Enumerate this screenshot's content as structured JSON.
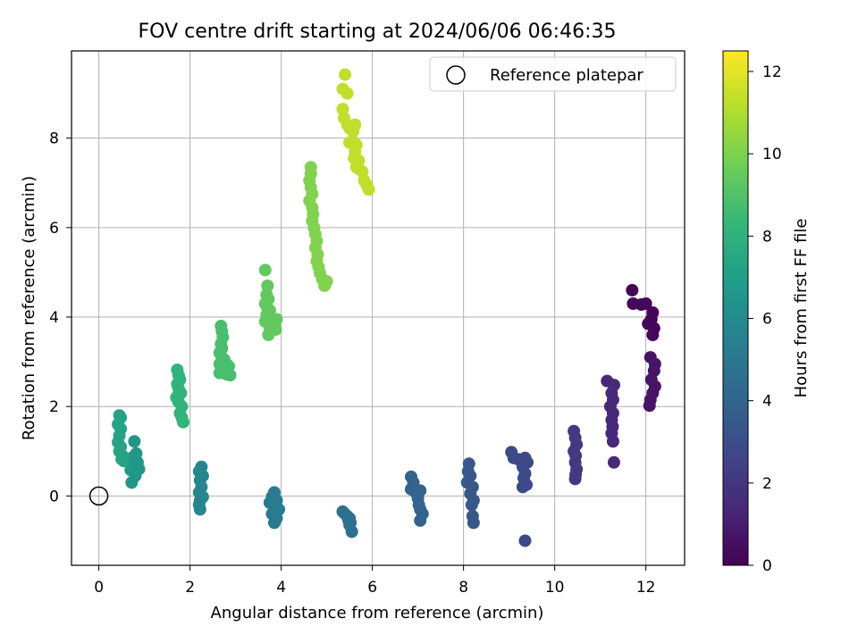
{
  "chart_data": {
    "type": "scatter",
    "title": "FOV centre drift starting at 2024/06/06 06:46:35",
    "xlabel": "Angular distance from reference (arcmin)",
    "ylabel": "Rotation from reference (arcmin)",
    "xlim": [
      -0.6,
      12.85
    ],
    "ylim": [
      -1.55,
      9.95
    ],
    "xticks": [
      0,
      2,
      4,
      6,
      8,
      10,
      12
    ],
    "yticks": [
      0,
      2,
      4,
      6,
      8
    ],
    "grid": true,
    "legend": {
      "position": "top-right",
      "entries": [
        "Reference platepar"
      ]
    },
    "reference_point": {
      "x": 0,
      "y": 0,
      "label": "Reference platepar"
    },
    "colorbar": {
      "label": "Hours from first FF file",
      "range": [
        0,
        12.5
      ],
      "ticks": [
        0,
        2,
        4,
        6,
        8,
        10,
        12
      ],
      "colormap": "viridis",
      "stops": [
        "#440154",
        "#482878",
        "#3e4989",
        "#31688e",
        "#26828e",
        "#1f9e89",
        "#35b779",
        "#6ece58",
        "#b5de2b",
        "#fde725"
      ]
    },
    "series": [
      {
        "hours": 0.2,
        "points": [
          [
            11.7,
            4.6
          ],
          [
            11.72,
            4.3
          ],
          [
            11.9,
            4.28
          ],
          [
            12.0,
            4.3
          ],
          [
            12.15,
            4.1
          ],
          [
            12.12,
            3.95
          ],
          [
            12.05,
            3.85
          ],
          [
            12.18,
            3.75
          ],
          [
            12.15,
            3.6
          ]
        ]
      },
      {
        "hours": 0.7,
        "points": [
          [
            12.1,
            3.1
          ],
          [
            12.2,
            2.95
          ],
          [
            12.18,
            2.8
          ],
          [
            12.12,
            2.6
          ],
          [
            12.2,
            2.45
          ],
          [
            12.15,
            2.3
          ],
          [
            12.1,
            2.15
          ],
          [
            12.08,
            2.02
          ]
        ]
      },
      {
        "hours": 1.4,
        "points": [
          [
            11.15,
            2.57
          ],
          [
            11.3,
            2.48
          ],
          [
            11.25,
            2.3
          ],
          [
            11.28,
            2.15
          ],
          [
            11.22,
            2.0
          ],
          [
            11.28,
            1.85
          ],
          [
            11.25,
            1.7
          ],
          [
            11.27,
            1.55
          ],
          [
            11.25,
            1.4
          ],
          [
            11.28,
            1.22
          ],
          [
            11.3,
            0.75
          ]
        ]
      },
      {
        "hours": 2.1,
        "points": [
          [
            10.42,
            1.45
          ],
          [
            10.45,
            1.3
          ],
          [
            10.48,
            1.15
          ],
          [
            10.42,
            1.0
          ],
          [
            10.46,
            0.9
          ],
          [
            10.45,
            0.75
          ],
          [
            10.48,
            0.6
          ],
          [
            10.46,
            0.48
          ],
          [
            10.45,
            0.38
          ]
        ]
      },
      {
        "hours": 2.8,
        "points": [
          [
            9.05,
            0.98
          ],
          [
            9.1,
            0.85
          ],
          [
            9.2,
            0.82
          ],
          [
            9.35,
            0.85
          ],
          [
            9.4,
            0.75
          ],
          [
            9.3,
            0.65
          ],
          [
            9.35,
            0.5
          ],
          [
            9.32,
            0.4
          ],
          [
            9.38,
            0.25
          ],
          [
            9.3,
            0.2
          ],
          [
            9.35,
            -1.0
          ]
        ]
      },
      {
        "hours": 3.4,
        "points": [
          [
            8.12,
            0.72
          ],
          [
            8.1,
            0.55
          ],
          [
            8.15,
            0.45
          ],
          [
            8.08,
            0.3
          ],
          [
            8.2,
            0.2
          ],
          [
            8.15,
            0.05
          ],
          [
            8.22,
            -0.1
          ],
          [
            8.18,
            -0.2
          ],
          [
            8.2,
            -0.45
          ],
          [
            8.22,
            -0.6
          ]
        ]
      },
      {
        "hours": 4.0,
        "points": [
          [
            6.85,
            0.43
          ],
          [
            6.9,
            0.3
          ],
          [
            6.85,
            0.15
          ],
          [
            6.95,
            0.08
          ],
          [
            7.05,
            0.12
          ],
          [
            7.0,
            -0.05
          ],
          [
            7.02,
            -0.2
          ],
          [
            7.05,
            -0.3
          ],
          [
            7.1,
            -0.4
          ],
          [
            7.05,
            -0.55
          ]
        ]
      },
      {
        "hours": 4.6,
        "points": [
          [
            5.35,
            -0.35
          ],
          [
            5.4,
            -0.4
          ],
          [
            5.45,
            -0.45
          ],
          [
            5.5,
            -0.5
          ],
          [
            5.48,
            -0.55
          ],
          [
            5.52,
            -0.6
          ],
          [
            5.5,
            -0.65
          ],
          [
            5.55,
            -0.8
          ]
        ]
      },
      {
        "hours": 5.2,
        "points": [
          [
            3.85,
            0.08
          ],
          [
            3.8,
            -0.02
          ],
          [
            3.9,
            -0.1
          ],
          [
            3.75,
            -0.15
          ],
          [
            3.85,
            -0.25
          ],
          [
            3.95,
            -0.3
          ],
          [
            3.8,
            -0.4
          ],
          [
            3.9,
            -0.5
          ],
          [
            3.85,
            -0.6
          ]
        ]
      },
      {
        "hours": 5.8,
        "points": [
          [
            2.25,
            0.65
          ],
          [
            2.2,
            0.55
          ],
          [
            2.28,
            0.45
          ],
          [
            2.22,
            0.35
          ],
          [
            2.25,
            0.2
          ],
          [
            2.2,
            0.08
          ],
          [
            2.28,
            -0.02
          ],
          [
            2.22,
            -0.1
          ],
          [
            2.2,
            -0.2
          ],
          [
            2.22,
            -0.3
          ]
        ]
      },
      {
        "hours": 6.6,
        "points": [
          [
            0.78,
            1.22
          ],
          [
            0.82,
            0.95
          ],
          [
            0.72,
            0.85
          ],
          [
            0.85,
            0.75
          ],
          [
            0.75,
            0.65
          ],
          [
            0.7,
            0.58
          ],
          [
            0.82,
            0.6
          ],
          [
            0.88,
            0.6
          ],
          [
            0.8,
            0.45
          ],
          [
            0.72,
            0.3
          ]
        ]
      },
      {
        "hours": 7.3,
        "points": [
          [
            0.45,
            1.8
          ],
          [
            0.48,
            1.75
          ],
          [
            0.42,
            1.6
          ],
          [
            0.48,
            1.5
          ],
          [
            0.45,
            1.35
          ],
          [
            0.42,
            1.2
          ],
          [
            0.48,
            1.1
          ],
          [
            0.45,
            1.0
          ],
          [
            0.52,
            0.9
          ],
          [
            0.5,
            0.82
          ],
          [
            0.55,
            0.78
          ]
        ]
      },
      {
        "hours": 8.1,
        "points": [
          [
            1.72,
            2.82
          ],
          [
            1.75,
            2.7
          ],
          [
            1.78,
            2.6
          ],
          [
            1.72,
            2.5
          ],
          [
            1.75,
            2.4
          ],
          [
            1.8,
            2.3
          ],
          [
            1.7,
            2.2
          ],
          [
            1.75,
            2.1
          ],
          [
            1.82,
            2.0
          ],
          [
            1.78,
            1.85
          ],
          [
            1.82,
            1.75
          ],
          [
            1.85,
            1.65
          ]
        ]
      },
      {
        "hours": 8.8,
        "points": [
          [
            2.68,
            3.8
          ],
          [
            2.7,
            3.68
          ],
          [
            2.72,
            3.55
          ],
          [
            2.68,
            3.4
          ],
          [
            2.7,
            3.3
          ],
          [
            2.65,
            3.2
          ],
          [
            2.7,
            3.1
          ],
          [
            2.75,
            3.05
          ],
          [
            2.65,
            2.95
          ],
          [
            2.8,
            2.95
          ],
          [
            2.85,
            2.9
          ],
          [
            2.72,
            2.8
          ],
          [
            2.8,
            2.72
          ],
          [
            2.88,
            2.7
          ],
          [
            2.65,
            2.75
          ]
        ]
      },
      {
        "hours": 9.4,
        "points": [
          [
            3.65,
            5.05
          ],
          [
            3.7,
            4.7
          ],
          [
            3.68,
            4.5
          ],
          [
            3.72,
            4.4
          ],
          [
            3.65,
            4.3
          ],
          [
            3.7,
            4.2
          ],
          [
            3.75,
            4.15
          ],
          [
            3.68,
            4.05
          ],
          [
            3.72,
            3.95
          ],
          [
            3.8,
            3.9
          ],
          [
            3.65,
            3.9
          ],
          [
            3.85,
            3.85
          ],
          [
            3.9,
            3.95
          ],
          [
            3.75,
            3.75
          ],
          [
            3.72,
            3.6
          ],
          [
            3.88,
            3.72
          ]
        ]
      },
      {
        "hours": 10.1,
        "points": [
          [
            4.65,
            7.35
          ],
          [
            4.65,
            7.2
          ],
          [
            4.62,
            7.05
          ],
          [
            4.65,
            6.9
          ],
          [
            4.68,
            6.75
          ],
          [
            4.62,
            6.6
          ],
          [
            4.68,
            6.45
          ],
          [
            4.7,
            6.3
          ],
          [
            4.68,
            6.15
          ],
          [
            4.72,
            6.0
          ],
          [
            4.75,
            5.85
          ],
          [
            4.78,
            5.7
          ],
          [
            4.75,
            5.55
          ],
          [
            4.8,
            5.4
          ],
          [
            4.78,
            5.25
          ],
          [
            4.82,
            5.12
          ],
          [
            4.85,
            4.98
          ],
          [
            4.9,
            4.85
          ],
          [
            5.0,
            4.8
          ],
          [
            4.95,
            4.7
          ]
        ]
      },
      {
        "hours": 11.3,
        "points": [
          [
            5.4,
            9.42
          ],
          [
            5.35,
            9.1
          ],
          [
            5.45,
            9.0
          ],
          [
            5.35,
            8.65
          ],
          [
            5.38,
            8.45
          ],
          [
            5.45,
            8.3
          ],
          [
            5.5,
            8.22
          ],
          [
            5.55,
            8.28
          ],
          [
            5.62,
            8.3
          ],
          [
            5.58,
            8.15
          ],
          [
            5.5,
            7.9
          ],
          [
            5.6,
            7.9
          ],
          [
            5.65,
            7.85
          ],
          [
            5.62,
            7.7
          ],
          [
            5.6,
            7.55
          ],
          [
            5.7,
            7.5
          ],
          [
            5.65,
            7.35
          ],
          [
            5.72,
            7.3
          ],
          [
            5.78,
            7.25
          ],
          [
            5.82,
            7.05
          ],
          [
            5.88,
            6.95
          ],
          [
            5.92,
            6.85
          ]
        ]
      }
    ]
  }
}
